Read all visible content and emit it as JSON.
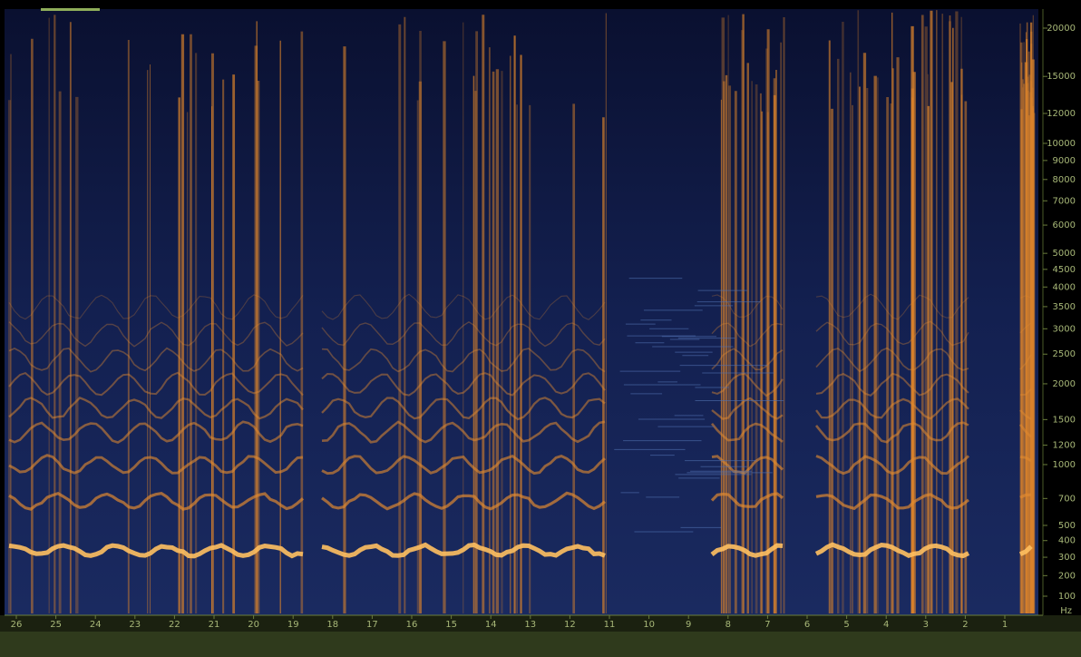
{
  "frequency_axis": {
    "ticks": [
      100,
      200,
      300,
      400,
      500,
      700,
      1000,
      1200,
      1500,
      2000,
      2500,
      3000,
      3500,
      4000,
      4500,
      5000,
      6000,
      7000,
      8000,
      9000,
      10000,
      12000,
      15000,
      20000
    ],
    "unit": "Hz"
  },
  "time_axis": {
    "ticks": [
      26,
      25,
      24,
      23,
      22,
      21,
      20,
      19,
      18,
      17,
      16,
      15,
      14,
      13,
      12,
      11,
      10,
      9,
      8,
      7,
      6,
      5,
      4,
      3,
      2,
      1
    ]
  }
}
